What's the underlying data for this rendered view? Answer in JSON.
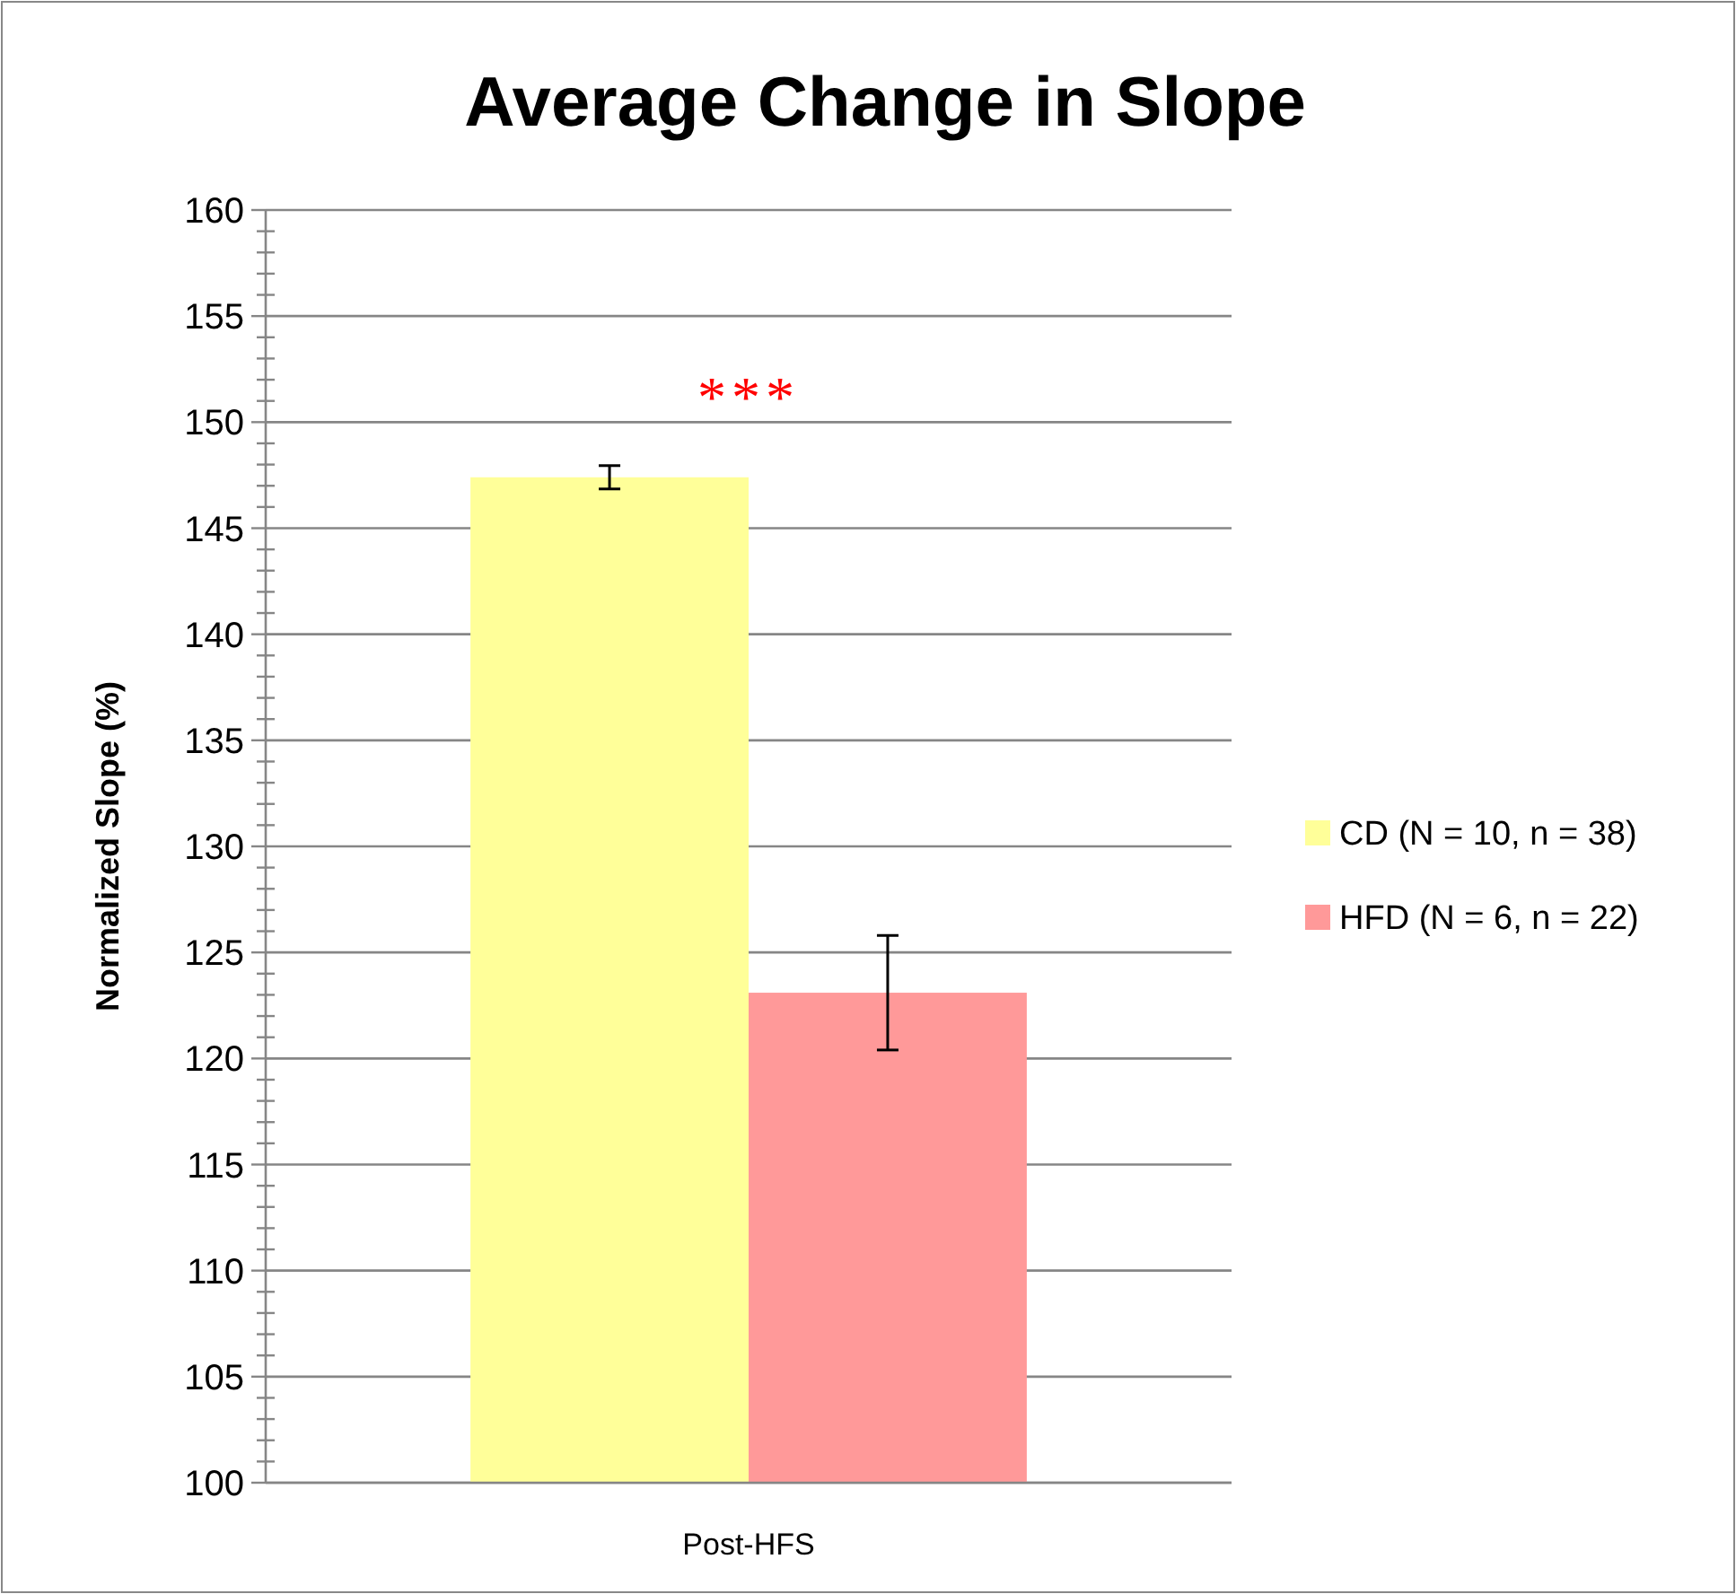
{
  "chart_data": {
    "type": "bar",
    "title": "Average Change in Slope",
    "ylabel": "Normalized Slope (%)",
    "categories": [
      "Post-HFS"
    ],
    "series": [
      {
        "name": "CD (N = 10, n = 38)",
        "color": "#ffff99",
        "values": [
          147.4
        ],
        "errors": [
          0.55
        ]
      },
      {
        "name": "HFD (N = 6, n = 22)",
        "color": "#ff9999",
        "values": [
          123.1
        ],
        "errors": [
          2.7
        ]
      }
    ],
    "ylim": [
      100,
      160
    ],
    "yticks": [
      100,
      {
        "value": 101,
        "label": null
      },
      {
        "value": 102,
        "label": null
      },
      {
        "value": 103,
        "label": null
      },
      {
        "value": 104,
        "label": null
      },
      105,
      {
        "value": 106,
        "label": null
      },
      {
        "value": 107,
        "label": null
      },
      {
        "value": 108,
        "label": null
      },
      {
        "value": 109,
        "label": null
      },
      110,
      {
        "value": 111,
        "label": null
      },
      {
        "value": 112,
        "label": null
      },
      {
        "value": 113,
        "label": null
      },
      {
        "value": 114,
        "label": null
      },
      115,
      {
        "value": 116,
        "label": null
      },
      {
        "value": 117,
        "label": null
      },
      {
        "value": 118,
        "label": null
      },
      {
        "value": 119,
        "label": null
      },
      120,
      {
        "value": 121,
        "label": null
      },
      {
        "value": 122,
        "label": null
      },
      {
        "value": 123,
        "label": null
      },
      {
        "value": 124,
        "label": null
      },
      125,
      {
        "value": 126,
        "label": null
      },
      {
        "value": 127,
        "label": null
      },
      {
        "value": 128,
        "label": null
      },
      {
        "value": 129,
        "label": null
      },
      130,
      {
        "value": 131,
        "label": null
      },
      {
        "value": 132,
        "label": null
      },
      {
        "value": 133,
        "label": null
      },
      {
        "value": 134,
        "label": null
      },
      135,
      {
        "value": 136,
        "label": null
      },
      {
        "value": 137,
        "label": null
      },
      {
        "value": 138,
        "label": null
      },
      {
        "value": 139,
        "label": null
      },
      140,
      {
        "value": 141,
        "label": null
      },
      {
        "value": 142,
        "label": null
      },
      {
        "value": 143,
        "label": null
      },
      {
        "value": 144,
        "label": null
      },
      145,
      {
        "value": 146,
        "label": null
      },
      {
        "value": 147,
        "label": null
      },
      {
        "value": 148,
        "label": null
      },
      {
        "value": 149,
        "label": null
      },
      150,
      {
        "value": 151,
        "label": null
      },
      {
        "value": 152,
        "label": null
      },
      {
        "value": 153,
        "label": null
      },
      {
        "value": 154,
        "label": null
      },
      155,
      {
        "value": 156,
        "label": null
      },
      {
        "value": 157,
        "label": null
      },
      {
        "value": 158,
        "label": null
      },
      {
        "value": 159,
        "label": null
      },
      160
    ],
    "grid": "y",
    "legend": "right",
    "annotations": [
      "***"
    ]
  }
}
